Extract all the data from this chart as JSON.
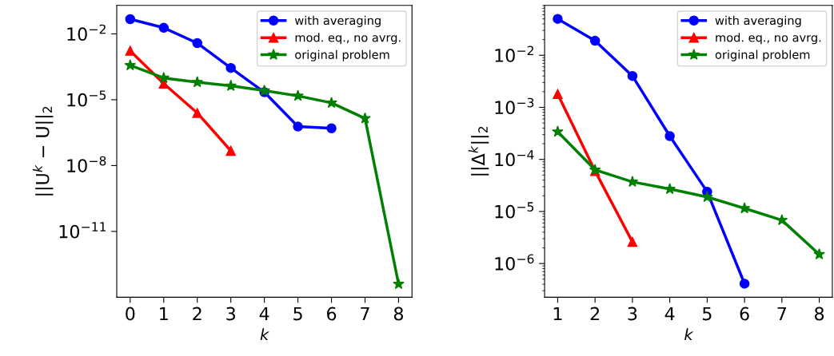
{
  "chart_data": [
    {
      "type": "line",
      "xlabel": "k",
      "ylabel": "||U$^{k}$ − U||$_{2}$",
      "log": "y",
      "grid": false,
      "legend": "top right",
      "xlim": [
        -0.4,
        8.4
      ],
      "xticks": [
        0,
        1,
        2,
        3,
        4,
        5,
        6,
        7,
        8
      ],
      "ylim": [
        1e-14,
        0.2
      ],
      "yticks": [
        {
          "value": 0.01,
          "label": "10$^{−2}$"
        },
        {
          "value": 1e-05,
          "label": "10$^{−5}$"
        },
        {
          "value": 1e-08,
          "label": "10$^{−8}$"
        },
        {
          "value": 1e-11,
          "label": "10$^{−11}$"
        }
      ],
      "series": [
        {
          "name": "with averaging",
          "color": "#0000ff",
          "marker": "circle",
          "x": [
            0,
            1,
            2,
            3,
            4,
            5,
            6
          ],
          "values": [
            0.047,
            0.019,
            0.0038,
            0.00028,
            2.2e-05,
            6e-07,
            5e-07
          ]
        },
        {
          "name": "mod. eq., no avrg.",
          "color": "#ff0000",
          "marker": "triangle",
          "x": [
            0,
            1,
            2,
            3
          ],
          "values": [
            0.0017,
            5.4e-05,
            2.5e-06,
            4.7e-08
          ]
        },
        {
          "name": "original problem",
          "color": "#008000",
          "marker": "star",
          "x": [
            0,
            1,
            2,
            3,
            4,
            5,
            6,
            7,
            8
          ],
          "values": [
            0.00037,
            9.8e-05,
            6.3e-05,
            4.3e-05,
            2.6e-05,
            1.5e-05,
            7.2e-06,
            1.4e-06,
            4e-14
          ]
        }
      ]
    },
    {
      "type": "line",
      "xlabel": "k",
      "ylabel": "||Δ$^{k}$||$_{2}$",
      "log": "y",
      "grid": false,
      "legend": "top right",
      "xlim": [
        0.65,
        8.35
      ],
      "xticks": [
        1,
        2,
        3,
        4,
        5,
        6,
        7,
        8
      ],
      "ylim": [
        2.25e-07,
        0.091
      ],
      "yticks": [
        {
          "value": 0.01,
          "label": "10$^{−2}$"
        },
        {
          "value": 0.001,
          "label": "10$^{−3}$"
        },
        {
          "value": 0.0001,
          "label": "10$^{−4}$"
        },
        {
          "value": 1e-05,
          "label": "10$^{−5}$"
        },
        {
          "value": 1e-06,
          "label": "10$^{−6}$"
        }
      ],
      "series": [
        {
          "name": "with averaging",
          "color": "#0000ff",
          "marker": "circle",
          "x": [
            1,
            2,
            3,
            4,
            5,
            6
          ],
          "values": [
            0.05,
            0.019,
            0.004,
            0.00028,
            2.4e-05,
            4.1e-07
          ]
        },
        {
          "name": "mod. eq., no avrg.",
          "color": "#ff0000",
          "marker": "triangle",
          "x": [
            1,
            2,
            3
          ],
          "values": [
            0.0018,
            6e-05,
            2.6e-06
          ]
        },
        {
          "name": "original problem",
          "color": "#008000",
          "marker": "star",
          "x": [
            1,
            2,
            3,
            4,
            5,
            6,
            7,
            8
          ],
          "values": [
            0.00034,
            6.3e-05,
            3.7e-05,
            2.7e-05,
            1.9e-05,
            1.15e-05,
            6.8e-06,
            1.5e-06
          ]
        }
      ]
    }
  ]
}
